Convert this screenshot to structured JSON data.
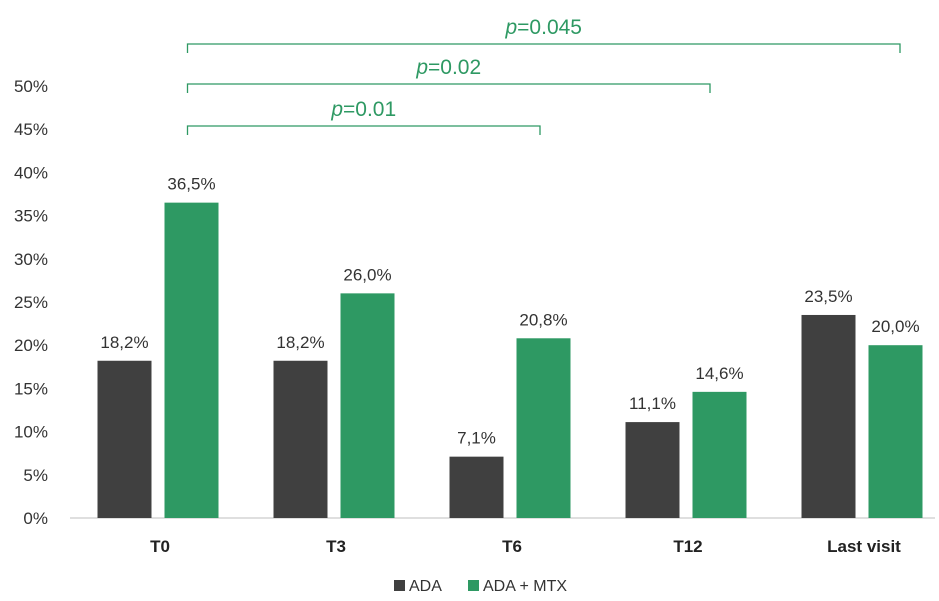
{
  "chart_data": {
    "type": "bar",
    "categories": [
      "T0",
      "T3",
      "T6",
      "T12",
      "Last visit"
    ],
    "series": [
      {
        "name": "ADA",
        "values": [
          18.2,
          18.2,
          7.1,
          11.1,
          23.5
        ],
        "labels": [
          "18,2%",
          "18,2%",
          "7,1%",
          "11,1%",
          "23,5%"
        ],
        "color": "#404040"
      },
      {
        "name": "ADA + MTX",
        "values": [
          36.5,
          26.0,
          20.8,
          14.6,
          20.0
        ],
        "labels": [
          "36,5%",
          "26,0%",
          "20,8%",
          "14,6%",
          "20,0%"
        ],
        "color": "#2e9963"
      }
    ],
    "ylim": [
      0,
      50
    ],
    "yticks": [
      "0%",
      "5%",
      "10%",
      "15%",
      "20%",
      "25%",
      "30%",
      "35%",
      "40%",
      "45%",
      "50%"
    ],
    "legend_position": "bottom",
    "significance": [
      {
        "from": "T0",
        "to": "T6",
        "p_symbol": "p",
        "p_value": "=0.01"
      },
      {
        "from": "T0",
        "to": "T12",
        "p_symbol": "p",
        "p_value": "=0.02"
      },
      {
        "from": "T0",
        "to": "Last visit",
        "p_symbol": "p",
        "p_value": "=0.045"
      }
    ],
    "significance_color": "#2e9963",
    "grid": false
  }
}
